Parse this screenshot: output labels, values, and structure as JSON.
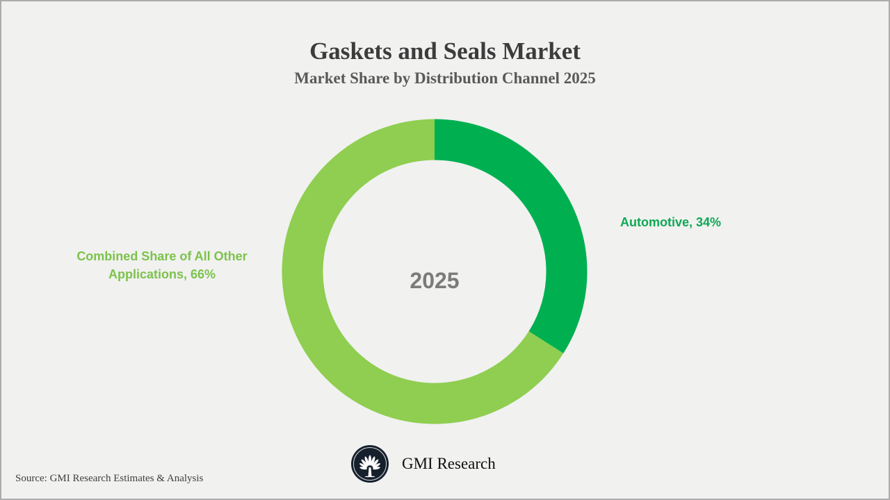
{
  "header": {
    "title": "Gaskets and Seals Market",
    "subtitle": "Market Share by Distribution Channel 2025"
  },
  "labels": {
    "automotive": "Automotive, 34%",
    "other_line1": "Combined Share of All Other",
    "other_line2": "Applications, 66%"
  },
  "center_label": "2025",
  "footer": {
    "source": "Source: GMI Research Estimates & Analysis",
    "brand_name": "GMI Research",
    "brand_icon": "palmetto-tree-icon"
  },
  "colors": {
    "background": "#F1F1F0",
    "border": "#ACACAC",
    "title": "#3C3C3C",
    "subtitle": "#595959",
    "center_label": "#7B7B7B",
    "automotive_label": "#0EA854",
    "other_label": "#7CC24B",
    "source_text": "#3F3F3F",
    "logo_circle": "#16202C"
  },
  "chart_data": {
    "type": "pie",
    "subtype": "donut",
    "title": "Gaskets and Seals Market",
    "subtitle": "Market Share by Distribution Channel 2025",
    "categories": [
      "Automotive",
      "Combined Share of All Other Applications"
    ],
    "values": [
      34,
      66
    ],
    "unit": "%",
    "colors": [
      "#00B050",
      "#8FCE50"
    ],
    "slice_label_colors": [
      "#0EA854",
      "#7CC24B"
    ],
    "data_labels": [
      "Automotive, 34%",
      "Combined Share of All Other Applications, 66%"
    ],
    "start_angle_deg": 0,
    "direction": "clockwise",
    "donut_hole_ratio": 0.73,
    "center_label": "2025",
    "legend_position": "none"
  }
}
